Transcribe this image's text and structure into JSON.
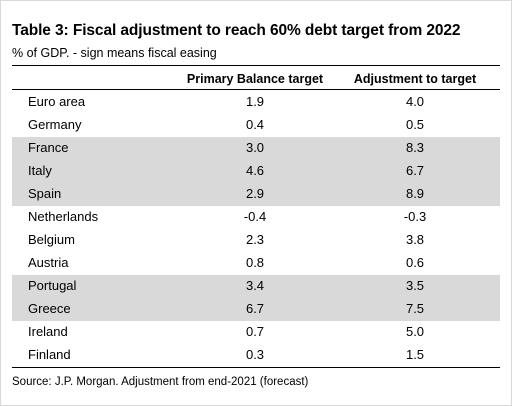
{
  "chart_data": {
    "type": "table",
    "title": "Table 3: Fiscal adjustment to reach 60% debt target from 2022",
    "subtitle": "% of GDP. - sign means fiscal easing",
    "columns": [
      "Primary Balance target",
      "Adjustment to target"
    ],
    "rows": [
      {
        "country": "Euro area",
        "primary_balance_target": "1.9",
        "adjustment_to_target": "4.0",
        "shaded": false
      },
      {
        "country": "Germany",
        "primary_balance_target": "0.4",
        "adjustment_to_target": "0.5",
        "shaded": false
      },
      {
        "country": "France",
        "primary_balance_target": "3.0",
        "adjustment_to_target": "8.3",
        "shaded": true
      },
      {
        "country": "Italy",
        "primary_balance_target": "4.6",
        "adjustment_to_target": "6.7",
        "shaded": true
      },
      {
        "country": "Spain",
        "primary_balance_target": "2.9",
        "adjustment_to_target": "8.9",
        "shaded": true
      },
      {
        "country": "Netherlands",
        "primary_balance_target": "-0.4",
        "adjustment_to_target": "-0.3",
        "shaded": false
      },
      {
        "country": "Belgium",
        "primary_balance_target": "2.3",
        "adjustment_to_target": "3.8",
        "shaded": false
      },
      {
        "country": "Austria",
        "primary_balance_target": "0.8",
        "adjustment_to_target": "0.6",
        "shaded": false
      },
      {
        "country": "Portugal",
        "primary_balance_target": "3.4",
        "adjustment_to_target": "3.5",
        "shaded": true
      },
      {
        "country": "Greece",
        "primary_balance_target": "6.7",
        "adjustment_to_target": "7.5",
        "shaded": true
      },
      {
        "country": "Ireland",
        "primary_balance_target": "0.7",
        "adjustment_to_target": "5.0",
        "shaded": false
      },
      {
        "country": "Finland",
        "primary_balance_target": "0.3",
        "adjustment_to_target": "1.5",
        "shaded": false
      }
    ],
    "source": "Source: J.P. Morgan. Adjustment from end-2021 (forecast)",
    "colors": {
      "shade": "#d9d9d9",
      "rule": "#000000"
    }
  }
}
